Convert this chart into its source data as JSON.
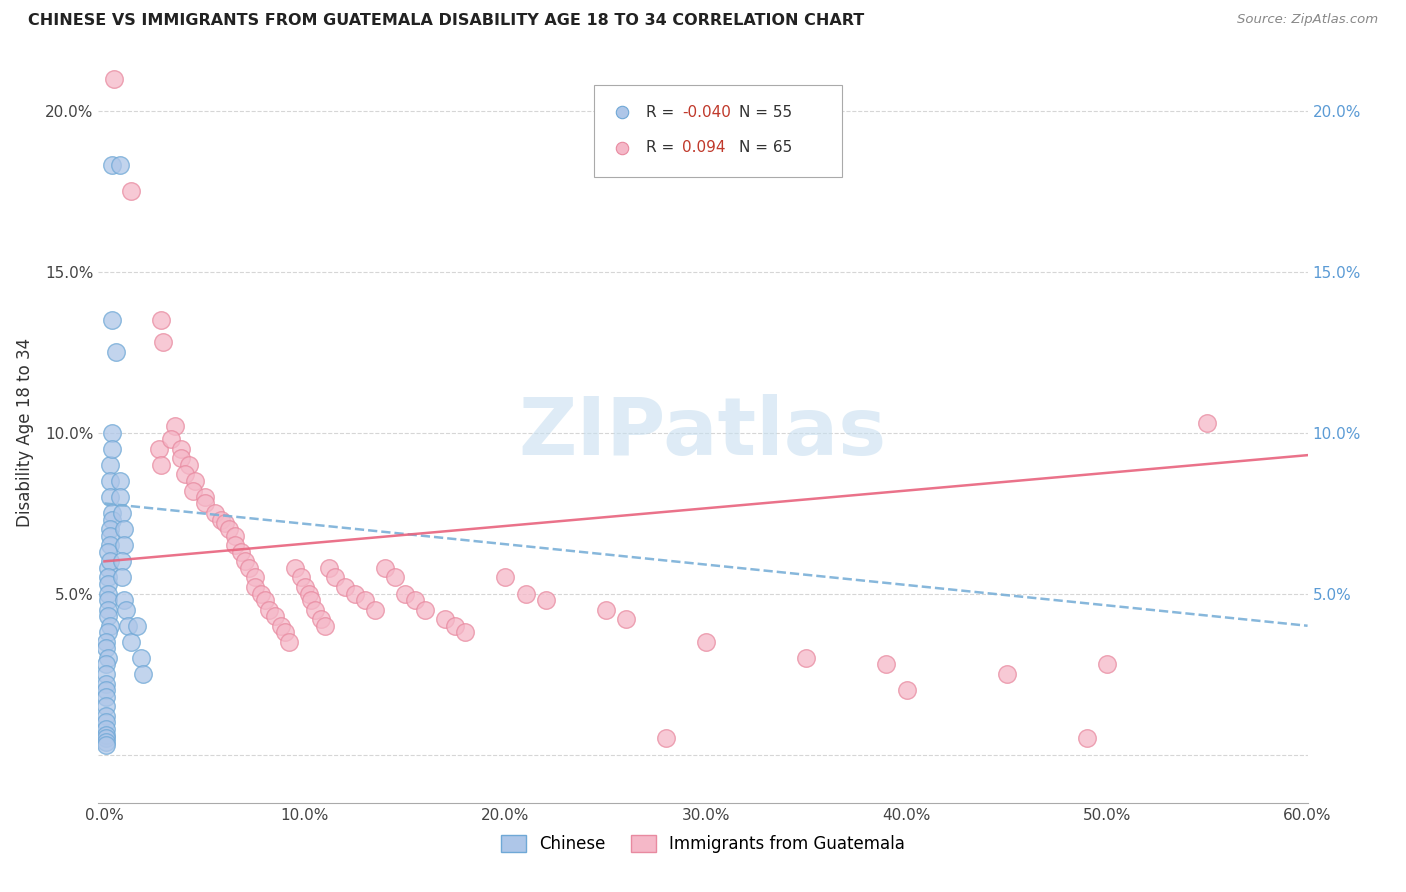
{
  "title": "CHINESE VS IMMIGRANTS FROM GUATEMALA DISABILITY AGE 18 TO 34 CORRELATION CHART",
  "source": "Source: ZipAtlas.com",
  "ylabel": "Disability Age 18 to 34",
  "xlim": [
    -0.003,
    0.6
  ],
  "ylim": [
    -0.015,
    0.215
  ],
  "xticks": [
    0.0,
    0.1,
    0.2,
    0.3,
    0.4,
    0.5,
    0.6
  ],
  "xticklabels": [
    "0.0%",
    "10.0%",
    "20.0%",
    "30.0%",
    "40.0%",
    "50.0%",
    "60.0%"
  ],
  "yticks": [
    0.0,
    0.05,
    0.1,
    0.15,
    0.2
  ],
  "yticklabels_left": [
    "",
    "5.0%",
    "10.0%",
    "15.0%",
    "20.0%"
  ],
  "yticklabels_right": [
    "",
    "5.0%",
    "10.0%",
    "15.0%",
    "20.0%"
  ],
  "blue_fill": "#aec6e8",
  "blue_edge": "#6fa8d6",
  "pink_fill": "#f5b8c8",
  "pink_edge": "#e88aa0",
  "blue_line": "#7ab0d8",
  "pink_line": "#e8637d",
  "watermark_color": "#c8dff0",
  "blue_trend": [
    0.0,
    0.6,
    0.078,
    0.04
  ],
  "pink_trend": [
    0.0,
    0.6,
    0.06,
    0.093
  ],
  "chinese_points": [
    [
      0.004,
      0.183
    ],
    [
      0.008,
      0.183
    ],
    [
      0.004,
      0.135
    ],
    [
      0.004,
      0.1
    ],
    [
      0.006,
      0.125
    ],
    [
      0.003,
      0.09
    ],
    [
      0.004,
      0.095
    ],
    [
      0.003,
      0.085
    ],
    [
      0.003,
      0.08
    ],
    [
      0.004,
      0.075
    ],
    [
      0.004,
      0.073
    ],
    [
      0.003,
      0.07
    ],
    [
      0.003,
      0.068
    ],
    [
      0.003,
      0.065
    ],
    [
      0.002,
      0.063
    ],
    [
      0.002,
      0.058
    ],
    [
      0.003,
      0.06
    ],
    [
      0.002,
      0.055
    ],
    [
      0.002,
      0.053
    ],
    [
      0.002,
      0.05
    ],
    [
      0.002,
      0.048
    ],
    [
      0.002,
      0.045
    ],
    [
      0.002,
      0.043
    ],
    [
      0.003,
      0.04
    ],
    [
      0.002,
      0.038
    ],
    [
      0.001,
      0.035
    ],
    [
      0.001,
      0.033
    ],
    [
      0.002,
      0.03
    ],
    [
      0.001,
      0.028
    ],
    [
      0.001,
      0.025
    ],
    [
      0.001,
      0.022
    ],
    [
      0.001,
      0.02
    ],
    [
      0.001,
      0.018
    ],
    [
      0.001,
      0.015
    ],
    [
      0.001,
      0.012
    ],
    [
      0.001,
      0.01
    ],
    [
      0.001,
      0.008
    ],
    [
      0.001,
      0.006
    ],
    [
      0.001,
      0.005
    ],
    [
      0.001,
      0.004
    ],
    [
      0.001,
      0.003
    ],
    [
      0.008,
      0.085
    ],
    [
      0.008,
      0.08
    ],
    [
      0.009,
      0.075
    ],
    [
      0.01,
      0.07
    ],
    [
      0.01,
      0.065
    ],
    [
      0.009,
      0.06
    ],
    [
      0.009,
      0.055
    ],
    [
      0.01,
      0.048
    ],
    [
      0.011,
      0.045
    ],
    [
      0.012,
      0.04
    ],
    [
      0.013,
      0.035
    ],
    [
      0.016,
      0.04
    ],
    [
      0.018,
      0.03
    ],
    [
      0.019,
      0.025
    ]
  ],
  "guatemala_points": [
    [
      0.005,
      0.21
    ],
    [
      0.013,
      0.175
    ],
    [
      0.028,
      0.135
    ],
    [
      0.029,
      0.128
    ],
    [
      0.027,
      0.095
    ],
    [
      0.028,
      0.09
    ],
    [
      0.035,
      0.102
    ],
    [
      0.033,
      0.098
    ],
    [
      0.038,
      0.095
    ],
    [
      0.038,
      0.092
    ],
    [
      0.042,
      0.09
    ],
    [
      0.04,
      0.087
    ],
    [
      0.045,
      0.085
    ],
    [
      0.044,
      0.082
    ],
    [
      0.05,
      0.08
    ],
    [
      0.05,
      0.078
    ],
    [
      0.055,
      0.075
    ],
    [
      0.058,
      0.073
    ],
    [
      0.06,
      0.072
    ],
    [
      0.062,
      0.07
    ],
    [
      0.065,
      0.068
    ],
    [
      0.065,
      0.065
    ],
    [
      0.068,
      0.063
    ],
    [
      0.07,
      0.06
    ],
    [
      0.072,
      0.058
    ],
    [
      0.075,
      0.055
    ],
    [
      0.075,
      0.052
    ],
    [
      0.078,
      0.05
    ],
    [
      0.08,
      0.048
    ],
    [
      0.082,
      0.045
    ],
    [
      0.085,
      0.043
    ],
    [
      0.088,
      0.04
    ],
    [
      0.09,
      0.038
    ],
    [
      0.092,
      0.035
    ],
    [
      0.095,
      0.058
    ],
    [
      0.098,
      0.055
    ],
    [
      0.1,
      0.052
    ],
    [
      0.102,
      0.05
    ],
    [
      0.103,
      0.048
    ],
    [
      0.105,
      0.045
    ],
    [
      0.108,
      0.042
    ],
    [
      0.11,
      0.04
    ],
    [
      0.112,
      0.058
    ],
    [
      0.115,
      0.055
    ],
    [
      0.12,
      0.052
    ],
    [
      0.125,
      0.05
    ],
    [
      0.13,
      0.048
    ],
    [
      0.135,
      0.045
    ],
    [
      0.14,
      0.058
    ],
    [
      0.145,
      0.055
    ],
    [
      0.15,
      0.05
    ],
    [
      0.155,
      0.048
    ],
    [
      0.16,
      0.045
    ],
    [
      0.17,
      0.042
    ],
    [
      0.175,
      0.04
    ],
    [
      0.18,
      0.038
    ],
    [
      0.2,
      0.055
    ],
    [
      0.21,
      0.05
    ],
    [
      0.22,
      0.048
    ],
    [
      0.25,
      0.045
    ],
    [
      0.26,
      0.042
    ],
    [
      0.3,
      0.035
    ],
    [
      0.35,
      0.03
    ],
    [
      0.39,
      0.028
    ],
    [
      0.55,
      0.103
    ],
    [
      0.5,
      0.028
    ],
    [
      0.45,
      0.025
    ],
    [
      0.4,
      0.02
    ],
    [
      0.28,
      0.005
    ],
    [
      0.49,
      0.005
    ]
  ]
}
